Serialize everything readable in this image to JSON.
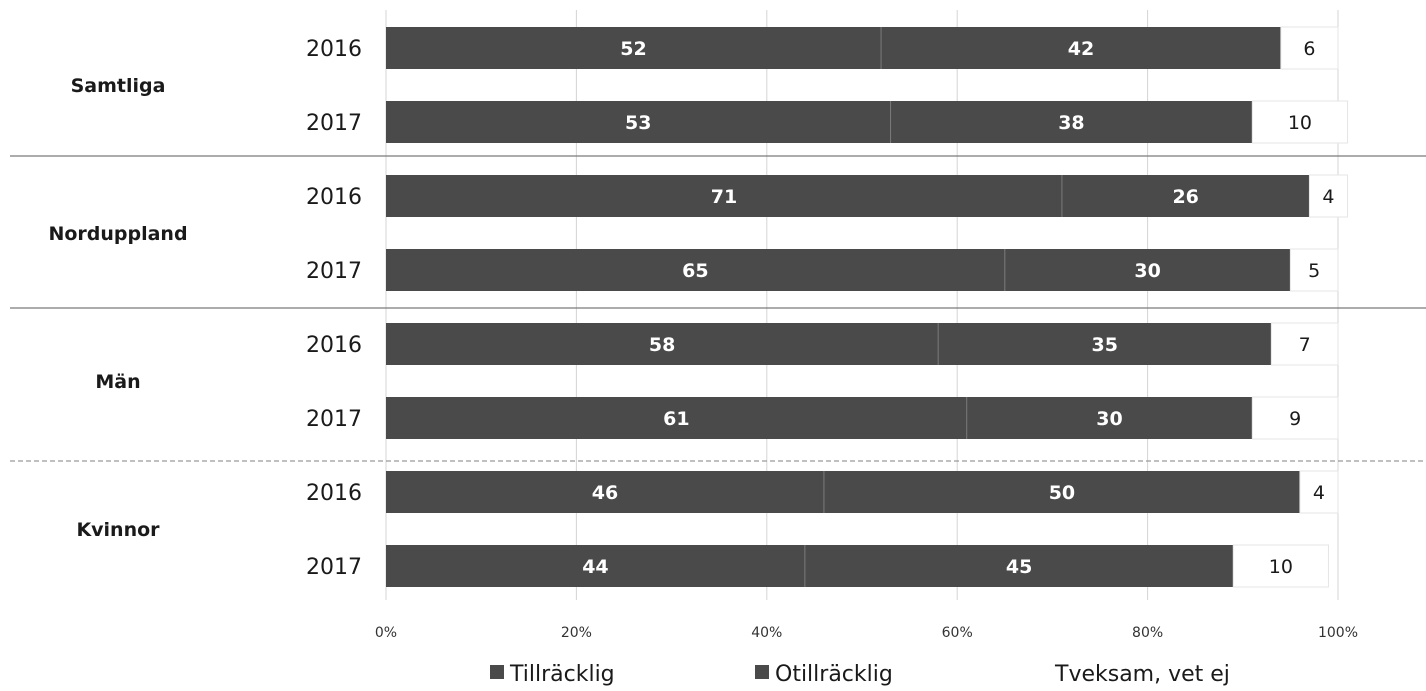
{
  "chart_data": {
    "type": "bar",
    "orientation": "horizontal",
    "stacked": true,
    "groups": [
      {
        "label": "Samtliga",
        "rows": [
          {
            "year": "2016",
            "values": [
              52,
              42,
              6
            ]
          },
          {
            "year": "2017",
            "values": [
              53,
              38,
              10
            ]
          }
        ]
      },
      {
        "label": "Norduppland",
        "rows": [
          {
            "year": "2016",
            "values": [
              71,
              26,
              4
            ]
          },
          {
            "year": "2017",
            "values": [
              65,
              30,
              5
            ]
          }
        ]
      },
      {
        "label": "Män",
        "rows": [
          {
            "year": "2016",
            "values": [
              58,
              35,
              7
            ]
          },
          {
            "year": "2017",
            "values": [
              61,
              30,
              9
            ]
          }
        ]
      },
      {
        "label": "Kvinnor",
        "rows": [
          {
            "year": "2016",
            "values": [
              46,
              50,
              4
            ]
          },
          {
            "year": "2017",
            "values": [
              44,
              45,
              10
            ]
          }
        ]
      }
    ],
    "series": [
      {
        "name": "Tillräcklig",
        "color": "#4a4a4a"
      },
      {
        "name": "Otillräcklig",
        "color": "#4a4a4a"
      },
      {
        "name": "Tveksam, vet ej",
        "color": "#ffffff"
      }
    ],
    "x_ticks": [
      "0%",
      "20%",
      "40%",
      "60%",
      "80%",
      "100%"
    ],
    "xlim": [
      0,
      100
    ],
    "grid": true,
    "legend_position": "bottom"
  }
}
